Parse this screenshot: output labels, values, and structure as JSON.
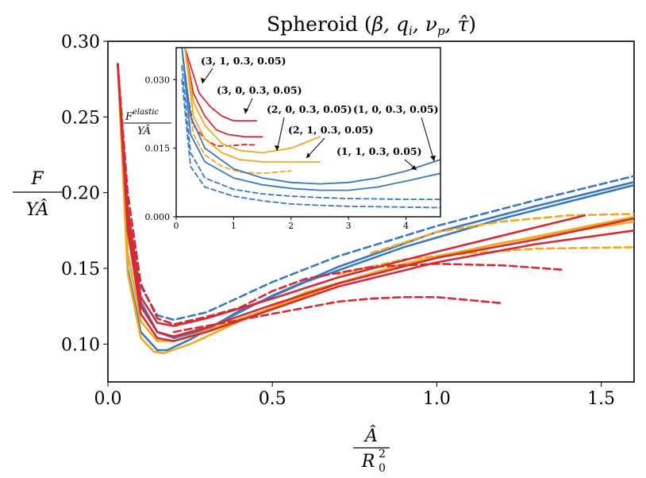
{
  "chart_data": [
    {
      "type": "line",
      "title": "Spheroid (β, q_i, ν_p, τ̂)",
      "xlabel": "Â / R₀²",
      "ylabel": "F / (Y Â)",
      "xlim": [
        0.0,
        1.6
      ],
      "ylim": [
        0.075,
        0.3
      ],
      "xticks": [
        "0.0",
        "0.5",
        "1.0",
        "1.5"
      ],
      "yticks": [
        "0.10",
        "0.15",
        "0.20",
        "0.25",
        "0.30"
      ],
      "grid": false,
      "series": [
        {
          "color": "#3a78c2",
          "style": "dashed",
          "x": [
            0.03,
            0.06,
            0.1,
            0.15,
            0.2,
            0.3,
            0.5,
            0.7,
            1.0,
            1.3,
            1.6
          ],
          "y": [
            0.285,
            0.185,
            0.138,
            0.119,
            0.116,
            0.121,
            0.141,
            0.158,
            0.178,
            0.195,
            0.211
          ]
        },
        {
          "color": "#3a78c2",
          "style": "solid",
          "x": [
            0.03,
            0.06,
            0.1,
            0.15,
            0.2,
            0.3,
            0.5,
            0.7,
            1.0,
            1.3,
            1.6
          ],
          "y": [
            0.285,
            0.178,
            0.128,
            0.108,
            0.104,
            0.11,
            0.132,
            0.151,
            0.174,
            0.191,
            0.207
          ]
        },
        {
          "color": "#3a78c2",
          "style": "solid",
          "x": [
            0.03,
            0.06,
            0.1,
            0.15,
            0.18,
            0.25,
            0.4,
            0.6,
            0.9,
            1.2,
            1.6
          ],
          "y": [
            0.285,
            0.15,
            0.108,
            0.096,
            0.096,
            0.103,
            0.122,
            0.141,
            0.164,
            0.183,
            0.205
          ]
        },
        {
          "color": "#f2a81d",
          "style": "solid",
          "x": [
            0.03,
            0.06,
            0.1,
            0.14,
            0.17,
            0.25,
            0.4,
            0.6,
            0.9,
            1.2,
            1.6
          ],
          "y": [
            0.285,
            0.147,
            0.104,
            0.095,
            0.094,
            0.1,
            0.115,
            0.134,
            0.153,
            0.167,
            0.181
          ]
        },
        {
          "color": "#f2a81d",
          "style": "solid",
          "x": [
            0.03,
            0.06,
            0.1,
            0.15,
            0.2,
            0.3,
            0.5,
            0.7,
            1.0,
            1.3,
            1.6
          ],
          "y": [
            0.285,
            0.16,
            0.115,
            0.102,
            0.102,
            0.109,
            0.124,
            0.14,
            0.158,
            0.171,
            0.184
          ]
        },
        {
          "color": "#f2a81d",
          "style": "dashed",
          "x": [
            0.8,
            1.0,
            1.2,
            1.4,
            1.6
          ],
          "y": [
            0.16,
            0.174,
            0.181,
            0.185,
            0.186
          ]
        },
        {
          "color": "#f2a81d",
          "style": "dashed",
          "x": [
            0.7,
            0.9,
            1.1,
            1.3,
            1.6
          ],
          "y": [
            0.146,
            0.156,
            0.16,
            0.163,
            0.164
          ]
        },
        {
          "color": "#d62a35",
          "style": "dashed",
          "x": [
            0.03,
            0.06,
            0.1,
            0.15,
            0.2,
            0.3,
            0.4,
            0.5,
            0.6,
            0.8,
            1.0,
            1.2,
            1.39
          ],
          "y": [
            0.285,
            0.2,
            0.14,
            0.117,
            0.113,
            0.118,
            0.124,
            0.135,
            0.143,
            0.151,
            0.153,
            0.152,
            0.149
          ]
        },
        {
          "color": "#d62a35",
          "style": "dashed",
          "x": [
            0.2,
            0.3,
            0.4,
            0.5,
            0.6,
            0.7,
            0.8,
            0.9,
            1.0,
            1.1,
            1.2
          ],
          "y": [
            0.108,
            0.112,
            0.116,
            0.12,
            0.124,
            0.128,
            0.13,
            0.131,
            0.131,
            0.129,
            0.127
          ]
        },
        {
          "color": "#d62a35",
          "style": "solid",
          "x": [
            0.03,
            0.06,
            0.1,
            0.15,
            0.2,
            0.3,
            0.5,
            0.7,
            1.0,
            1.3,
            1.45
          ],
          "y": [
            0.285,
            0.19,
            0.131,
            0.114,
            0.112,
            0.117,
            0.13,
            0.144,
            0.161,
            0.177,
            0.185
          ]
        },
        {
          "color": "#d62a35",
          "style": "solid",
          "x": [
            0.03,
            0.06,
            0.1,
            0.15,
            0.2,
            0.3,
            0.5,
            0.7,
            1.0,
            1.3,
            1.6
          ],
          "y": [
            0.285,
            0.182,
            0.125,
            0.108,
            0.105,
            0.111,
            0.126,
            0.14,
            0.157,
            0.169,
            0.183
          ]
        },
        {
          "color": "#d62a35",
          "style": "solid",
          "x": [
            0.03,
            0.06,
            0.1,
            0.15,
            0.2,
            0.3,
            0.5,
            0.7,
            1.0,
            1.3,
            1.6
          ],
          "y": [
            0.285,
            0.175,
            0.12,
            0.104,
            0.102,
            0.108,
            0.123,
            0.138,
            0.154,
            0.166,
            0.175
          ]
        }
      ]
    },
    {
      "type": "line",
      "ylabel": "F^elastic / (Y Â)",
      "xlim": [
        0.0,
        4.6
      ],
      "ylim": [
        0.0,
        0.037
      ],
      "xticks": [
        "0",
        "1",
        "2",
        "3",
        "4"
      ],
      "yticks": [
        "0.000",
        "0.015",
        "0.030"
      ],
      "annotations": [
        "(3, 1, 0.3, 0.05)",
        "(3, 0, 0.3, 0.05)",
        "(2, 0, 0.3, 0.05)",
        "(2, 1, 0.3, 0.05)",
        "(1, 0, 0.3, 0.05)",
        "(1, 1, 0.3, 0.05)"
      ],
      "series": [
        {
          "color": "#d62a35",
          "style": "solid",
          "x": [
            0.15,
            0.25,
            0.4,
            0.6,
            0.8,
            1.0,
            1.2,
            1.4
          ],
          "y": [
            0.037,
            0.033,
            0.027,
            0.024,
            0.022,
            0.021,
            0.021,
            0.021
          ]
        },
        {
          "color": "#d62a35",
          "style": "solid",
          "x": [
            0.15,
            0.3,
            0.5,
            0.7,
            0.9,
            1.2,
            1.5
          ],
          "y": [
            0.037,
            0.027,
            0.022,
            0.019,
            0.018,
            0.0175,
            0.0175
          ]
        },
        {
          "color": "#d62a35",
          "style": "dashed",
          "x": [
            0.15,
            0.3,
            0.5,
            0.7,
            0.9,
            1.2,
            1.4
          ],
          "y": [
            0.03,
            0.02,
            0.017,
            0.0155,
            0.0155,
            0.0158,
            0.0157
          ]
        },
        {
          "color": "#f2a81d",
          "style": "solid",
          "x": [
            0.15,
            0.3,
            0.5,
            0.8,
            1.1,
            1.5,
            2.0,
            2.5
          ],
          "y": [
            0.037,
            0.025,
            0.02,
            0.016,
            0.0145,
            0.014,
            0.015,
            0.0175
          ]
        },
        {
          "color": "#f2a81d",
          "style": "solid",
          "x": [
            0.15,
            0.3,
            0.5,
            0.8,
            1.1,
            1.5,
            2.0,
            2.5
          ],
          "y": [
            0.037,
            0.022,
            0.017,
            0.014,
            0.0125,
            0.012,
            0.012,
            0.012
          ]
        },
        {
          "color": "#f2a81d",
          "style": "dashed",
          "x": [
            0.15,
            0.3,
            0.5,
            0.8,
            1.1,
            1.5,
            2.0
          ],
          "y": [
            0.03,
            0.018,
            0.0135,
            0.011,
            0.0098,
            0.0095,
            0.01
          ]
        },
        {
          "color": "#3a78c2",
          "style": "solid",
          "x": [
            0.1,
            0.25,
            0.5,
            1.0,
            1.5,
            2.0,
            2.5,
            3.0,
            3.5,
            4.0,
            4.6
          ],
          "y": [
            0.037,
            0.022,
            0.015,
            0.0105,
            0.0085,
            0.0075,
            0.0072,
            0.0075,
            0.0085,
            0.01,
            0.0125
          ]
        },
        {
          "color": "#3a78c2",
          "style": "solid",
          "x": [
            0.1,
            0.25,
            0.5,
            1.0,
            1.5,
            2.0,
            2.5,
            3.0,
            3.5,
            4.0,
            4.6
          ],
          "y": [
            0.037,
            0.018,
            0.012,
            0.0085,
            0.007,
            0.0062,
            0.0058,
            0.0058,
            0.0065,
            0.0078,
            0.0095
          ]
        },
        {
          "color": "#3a78c2",
          "style": "dashed",
          "x": [
            0.1,
            0.25,
            0.5,
            1.0,
            1.5,
            2.0,
            2.5,
            3.0,
            3.5,
            4.0,
            4.6
          ],
          "y": [
            0.033,
            0.014,
            0.0085,
            0.006,
            0.005,
            0.0045,
            0.0042,
            0.004,
            0.0039,
            0.0038,
            0.0038
          ]
        },
        {
          "color": "#3a78c2",
          "style": "dashed",
          "x": [
            0.1,
            0.25,
            0.5,
            1.0,
            1.5,
            2.0,
            2.5,
            3.0,
            3.5,
            4.0,
            4.6
          ],
          "y": [
            0.03,
            0.011,
            0.0065,
            0.0045,
            0.0035,
            0.0028,
            0.0025,
            0.0023,
            0.0022,
            0.0021,
            0.002
          ]
        }
      ]
    }
  ]
}
